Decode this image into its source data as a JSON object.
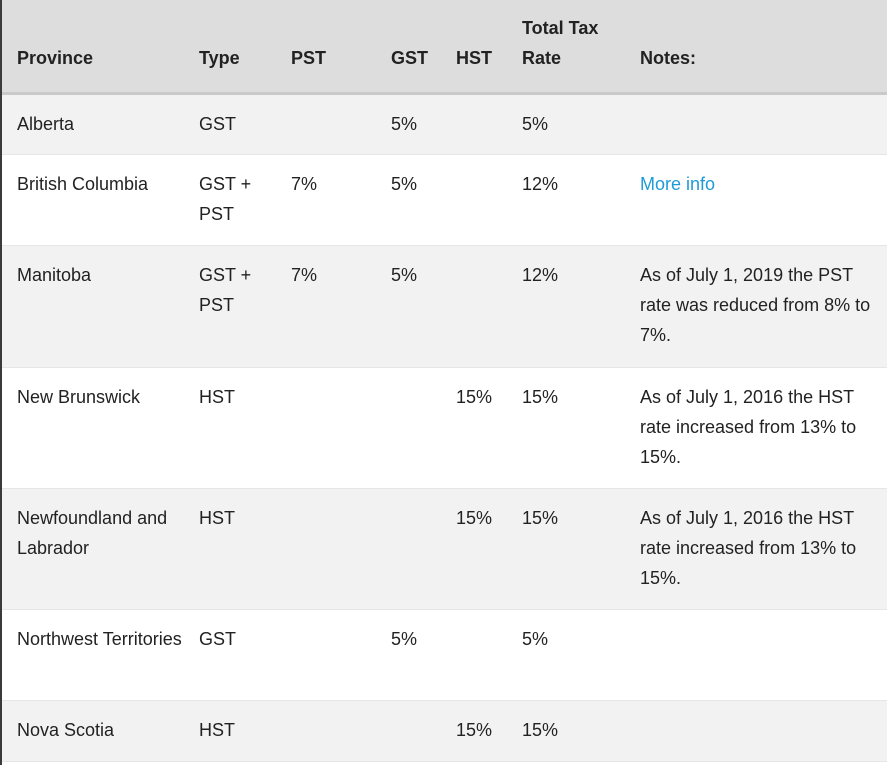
{
  "table": {
    "headers": {
      "province": "Province",
      "type": "Type",
      "pst": "PST",
      "gst": "GST",
      "hst": "HST",
      "total_line1": "Total Tax",
      "total_line2": "Rate",
      "notes": "Notes:"
    },
    "rows": [
      {
        "province": "Alberta",
        "type": "GST",
        "pst": "",
        "gst": "5%",
        "hst": "",
        "total": "5%",
        "notes": "",
        "notes_link": ""
      },
      {
        "province": "British Columbia",
        "type": "GST + PST",
        "pst": "7%",
        "gst": "5%",
        "hst": "",
        "total": "12%",
        "notes": "",
        "notes_link": "More info"
      },
      {
        "province": "Manitoba",
        "type": "GST + PST",
        "pst": "7%",
        "gst": "5%",
        "hst": "",
        "total": "12%",
        "notes": "As of July 1, 2019 the PST rate was reduced from 8% to 7%.",
        "notes_link": ""
      },
      {
        "province": "New Brunswick",
        "type": "HST",
        "pst": "",
        "gst": "",
        "hst": "15%",
        "total": "15%",
        "notes": "As of July 1, 2016 the HST rate increased from 13% to 15%.",
        "notes_link": ""
      },
      {
        "province": "Newfoundland and Labrador",
        "type": "HST",
        "pst": "",
        "gst": "",
        "hst": "15%",
        "total": "15%",
        "notes": "As of July 1, 2016 the HST rate increased from 13% to 15%.",
        "notes_link": ""
      },
      {
        "province": "Northwest Territories",
        "type": "GST",
        "pst": "",
        "gst": "5%",
        "hst": "",
        "total": "5%",
        "notes": "",
        "notes_link": ""
      },
      {
        "province": "Nova Scotia",
        "type": "HST",
        "pst": "",
        "gst": "",
        "hst": "15%",
        "total": "15%",
        "notes": "",
        "notes_link": ""
      }
    ]
  },
  "colors": {
    "header_bg": "#dddddd",
    "row_alt_bg": "#f2f2f2",
    "link": "#1e9bd7",
    "text": "#222222"
  }
}
